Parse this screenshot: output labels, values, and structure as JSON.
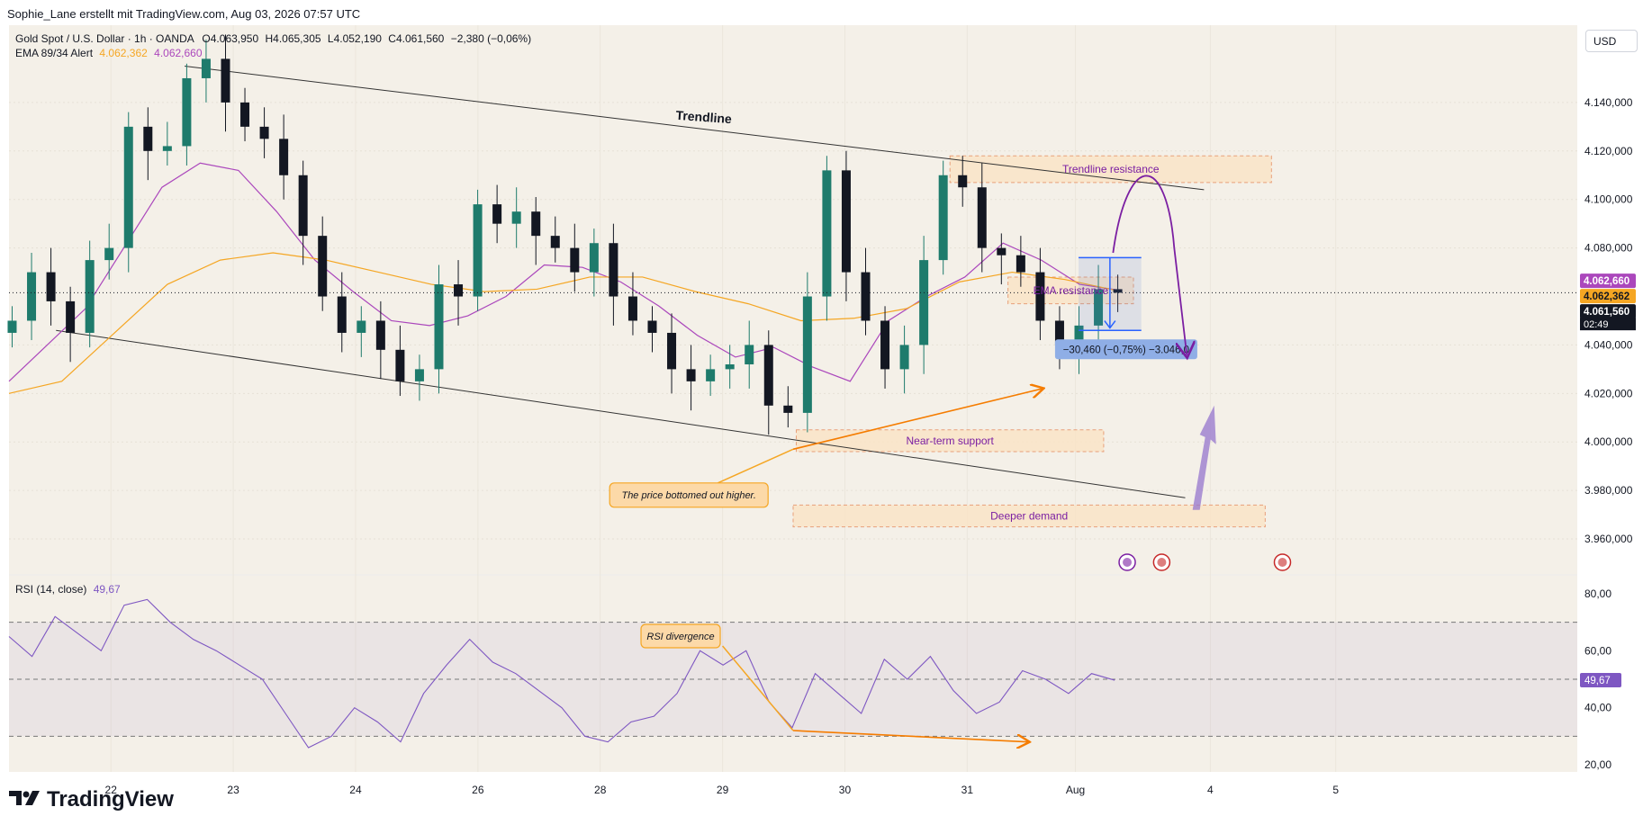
{
  "header": {
    "attribution": "Sophie_Lane erstellt mit TradingView.com, Aug 03, 2026 07:57 UTC"
  },
  "brand": {
    "name": "TradingView"
  },
  "currency": "USD",
  "legend": {
    "symbol": "Gold Spot / U.S. Dollar · 1h · OANDA",
    "open": "O4.063,950",
    "high": "H4.065,305",
    "low": "L4.052,190",
    "close": "C4.061,560",
    "change": "−2,380 (−0,06%)",
    "ema_label": "EMA 89/34 Alert",
    "ema_value_1": "4.062,362",
    "ema_value_2": "4.062,660"
  },
  "rsi_legend": {
    "label": "RSI (14, close)",
    "value": "49,67"
  },
  "colors": {
    "background": "#f4f0e8",
    "up": "#1e7b6c",
    "down": "#131722",
    "ema_fast": "#ab47bc",
    "ema_slow": "#f5a623",
    "rsi_line": "#7e57c2",
    "zone_fill": "#fbe3c3",
    "arrow_orange": "#f57c00",
    "arrow_purple": "#7b1fa2"
  },
  "annotations": {
    "trendline": "Trendline",
    "trendline_resistance": "Trendline resistance",
    "ema_resistance": "EMA resistance",
    "near_term_support": "Near-term support",
    "deeper_demand": "Deeper demand",
    "bottomed_out": "The price bottomed out higher.",
    "rsi_divergence": "RSI divergence",
    "measure_label": "−30,460 (−0,75%) −3.046,0"
  },
  "price_badges": {
    "ema_fast": "4.062,660",
    "ema_slow": "4.062,362",
    "last_price": "4.061,560",
    "countdown": "02:49"
  },
  "chart_data": [
    {
      "type": "candlestick",
      "title": "Gold Spot / U.S. Dollar · 1h · OANDA",
      "y_axis_labels": [
        "4.140,000",
        "4.120,000",
        "4.100,000",
        "4.080,000",
        "4.040,000",
        "4.020,000",
        "4.000,000",
        "3.980,000",
        "3.960,000"
      ],
      "x_tick_labels": [
        "22",
        "23",
        "24",
        "26",
        "28",
        "29",
        "30",
        "31",
        "Aug",
        "4",
        "5"
      ],
      "ylim": [
        3950,
        4160
      ],
      "series": [
        {
          "name": "close",
          "values": [
            4050,
            4070,
            4058,
            4045,
            4075,
            4080,
            4130,
            4120,
            4122,
            4150,
            4158,
            4140,
            4130,
            4125,
            4110,
            4085,
            4060,
            4045,
            4050,
            4038,
            4025,
            4030,
            4065,
            4060,
            4098,
            4090,
            4095,
            4085,
            4080,
            4070,
            4082,
            4060,
            4050,
            4045,
            4030,
            4025,
            4030,
            4032,
            4040,
            4015,
            4012,
            4060,
            4112,
            4070,
            4050,
            4030,
            4040,
            4075,
            4110,
            4105,
            4080,
            4077,
            4070,
            4050,
            4040,
            4048,
            4063,
            4061.56
          ]
        },
        {
          "name": "EMA 34",
          "values": [
            4025,
            4040,
            4055,
            4080,
            4105,
            4115,
            4112,
            4095,
            4075,
            4062,
            4050,
            4048,
            4052,
            4060,
            4073,
            4072,
            4066,
            4056,
            4044,
            4035,
            4039,
            4031,
            4025,
            4050,
            4060,
            4068,
            4082,
            4075,
            4065,
            4062.66
          ]
        },
        {
          "name": "EMA 89",
          "values": [
            4020,
            4025,
            4045,
            4065,
            4075,
            4078,
            4075,
            4070,
            4065,
            4062,
            4063,
            4068,
            4068,
            4062,
            4057,
            4050,
            4051,
            4055,
            4066,
            4070,
            4067,
            4062.36
          ]
        }
      ]
    },
    {
      "type": "line",
      "title": "RSI (14, close)",
      "y_axis_labels": [
        "80,00",
        "60,00",
        "40,00",
        "20,00"
      ],
      "ylim": [
        20,
        80
      ],
      "series": [
        {
          "name": "RSI (14, close)",
          "values": [
            65,
            58,
            72,
            66,
            60,
            76,
            78,
            70,
            64,
            60,
            55,
            50,
            38,
            26,
            30,
            40,
            35,
            28,
            45,
            55,
            64,
            56,
            52,
            46,
            40,
            30,
            28,
            35,
            37,
            45,
            60,
            55,
            60,
            42,
            33,
            52,
            45,
            38,
            57,
            50,
            58,
            46,
            38,
            42,
            53,
            50,
            45,
            52,
            49.67
          ]
        }
      ]
    }
  ]
}
